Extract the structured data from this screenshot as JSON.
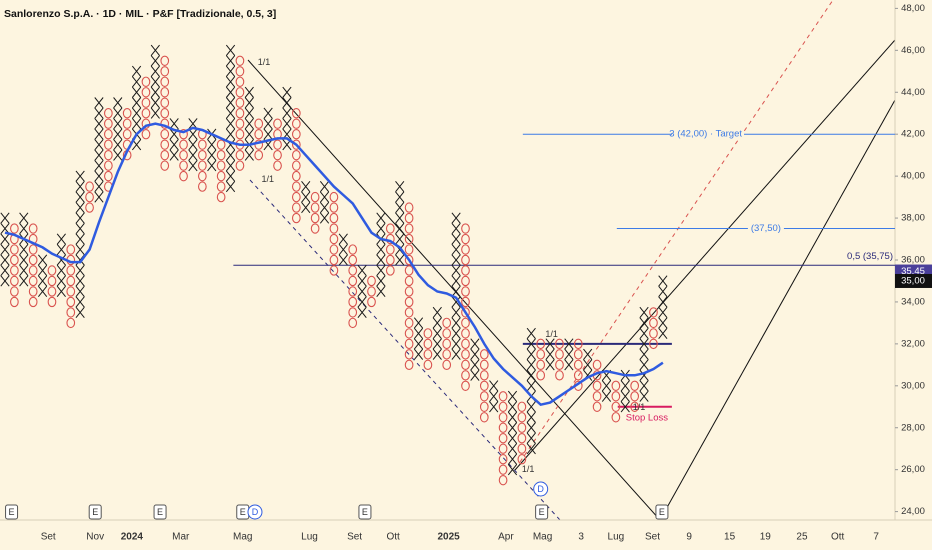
{
  "chart_data": {
    "type": "pnf",
    "title": "Sanlorenzo S.p.A. · 1D · MIL · P&F [Tradizionale, 0.5, 3]",
    "box_size": 0.5,
    "x_color": "#1a1a1a",
    "o_color": "#d9534f",
    "xlim": [
      -0.53,
      94.7
    ],
    "ylim": [
      23.6,
      48.4
    ],
    "yticks": [
      {
        "value": 24,
        "label": "24,00"
      },
      {
        "value": 26,
        "label": "26,00"
      },
      {
        "value": 28,
        "label": "28,00"
      },
      {
        "value": 30,
        "label": "30,00"
      },
      {
        "value": 32,
        "label": "32,00"
      },
      {
        "value": 34,
        "label": "34,00"
      },
      {
        "value": 36,
        "label": "36,00"
      },
      {
        "value": 38,
        "label": "38,00"
      },
      {
        "value": 40,
        "label": "40,00"
      },
      {
        "value": 42,
        "label": "42,00"
      },
      {
        "value": 44,
        "label": "44,00"
      },
      {
        "value": 46,
        "label": "46,00"
      },
      {
        "value": 48,
        "label": "48,00"
      }
    ],
    "xticks": [
      {
        "value": 4.6,
        "label": "Set"
      },
      {
        "value": 9.6,
        "label": "Nov"
      },
      {
        "value": 13.5,
        "label": "2024"
      },
      {
        "value": 18.7,
        "label": "Mar"
      },
      {
        "value": 25.3,
        "label": "Mag"
      },
      {
        "value": 32.4,
        "label": "Lug"
      },
      {
        "value": 37.2,
        "label": "Set"
      },
      {
        "value": 41.3,
        "label": "Ott"
      },
      {
        "value": 47.2,
        "label": "2025"
      },
      {
        "value": 53.3,
        "label": "Apr"
      },
      {
        "value": 57.2,
        "label": "Mag"
      },
      {
        "value": 61.3,
        "label": "3"
      },
      {
        "value": 65,
        "label": "Lug"
      },
      {
        "value": 68.9,
        "label": "Set"
      },
      {
        "value": 72.8,
        "label": "9"
      },
      {
        "value": 77.1,
        "label": "15"
      },
      {
        "value": 80.9,
        "label": "19"
      },
      {
        "value": 84.8,
        "label": "25"
      },
      {
        "value": 88.6,
        "label": "Ott"
      },
      {
        "value": 92.7,
        "label": "7"
      }
    ],
    "columns": [
      {
        "type": "X",
        "low": 35.0,
        "high": 38.0
      },
      {
        "type": "O",
        "low": 34.0,
        "high": 37.5
      },
      {
        "type": "X",
        "low": 35.0,
        "high": 38.0
      },
      {
        "type": "O",
        "low": 34.0,
        "high": 37.5
      },
      {
        "type": "X",
        "low": 34.5,
        "high": 36.0
      },
      {
        "type": "O",
        "low": 34.0,
        "high": 35.5
      },
      {
        "type": "X",
        "low": 34.5,
        "high": 37.0
      },
      {
        "type": "O",
        "low": 33.0,
        "high": 36.5
      },
      {
        "type": "X",
        "low": 33.5,
        "high": 40.0
      },
      {
        "type": "O",
        "low": 38.5,
        "high": 39.5
      },
      {
        "type": "X",
        "low": 39.0,
        "high": 43.5
      },
      {
        "type": "O",
        "low": 39.5,
        "high": 43.0
      },
      {
        "type": "X",
        "low": 41.0,
        "high": 43.5
      },
      {
        "type": "O",
        "low": 41.0,
        "high": 43.0
      },
      {
        "type": "X",
        "low": 41.5,
        "high": 45.0
      },
      {
        "type": "O",
        "low": 42.0,
        "high": 44.5
      },
      {
        "type": "X",
        "low": 43.0,
        "high": 46.0
      },
      {
        "type": "O",
        "low": 40.5,
        "high": 45.5
      },
      {
        "type": "X",
        "low": 41.0,
        "high": 42.5
      },
      {
        "type": "O",
        "low": 40.0,
        "high": 42.0
      },
      {
        "type": "X",
        "low": 40.5,
        "high": 42.5
      },
      {
        "type": "O",
        "low": 39.5,
        "high": 42.0
      },
      {
        "type": "X",
        "low": 40.5,
        "high": 42.0
      },
      {
        "type": "O",
        "low": 39.0,
        "high": 41.5
      },
      {
        "type": "X",
        "low": 39.5,
        "high": 46.0
      },
      {
        "type": "O",
        "low": 40.5,
        "high": 45.5
      },
      {
        "type": "X",
        "low": 41.0,
        "high": 44.0
      },
      {
        "type": "O",
        "low": 41.0,
        "high": 42.5
      },
      {
        "type": "X",
        "low": 41.5,
        "high": 43.0
      },
      {
        "type": "O",
        "low": 40.5,
        "high": 42.5
      },
      {
        "type": "X",
        "low": 41.5,
        "high": 44.0
      },
      {
        "type": "O",
        "low": 38.0,
        "high": 43.0
      },
      {
        "type": "X",
        "low": 38.5,
        "high": 39.5
      },
      {
        "type": "O",
        "low": 37.5,
        "high": 39.0
      },
      {
        "type": "X",
        "low": 38.0,
        "high": 39.5
      },
      {
        "type": "O",
        "low": 35.5,
        "high": 39.0
      },
      {
        "type": "X",
        "low": 36.0,
        "high": 37.0
      },
      {
        "type": "O",
        "low": 33.0,
        "high": 36.5
      },
      {
        "type": "X",
        "low": 33.5,
        "high": 35.5
      },
      {
        "type": "O",
        "low": 34.0,
        "high": 35.0
      },
      {
        "type": "X",
        "low": 34.5,
        "high": 38.0
      },
      {
        "type": "O",
        "low": 35.5,
        "high": 37.5
      },
      {
        "type": "X",
        "low": 36.0,
        "high": 39.5
      },
      {
        "type": "O",
        "low": 31.0,
        "high": 38.5
      },
      {
        "type": "X",
        "low": 31.5,
        "high": 33.0
      },
      {
        "type": "O",
        "low": 31.0,
        "high": 32.5
      },
      {
        "type": "X",
        "low": 31.5,
        "high": 33.5
      },
      {
        "type": "O",
        "low": 31.0,
        "high": 33.0
      },
      {
        "type": "X",
        "low": 31.5,
        "high": 38.0
      },
      {
        "type": "O",
        "low": 30.0,
        "high": 37.5
      },
      {
        "type": "X",
        "low": 30.5,
        "high": 32.0
      },
      {
        "type": "O",
        "low": 28.5,
        "high": 31.5
      },
      {
        "type": "X",
        "low": 29.0,
        "high": 30.0
      },
      {
        "type": "O",
        "low": 25.5,
        "high": 29.5
      },
      {
        "type": "X",
        "low": 26.0,
        "high": 29.5
      },
      {
        "type": "O",
        "low": 26.5,
        "high": 29.0
      },
      {
        "type": "X",
        "low": 27.0,
        "high": 32.5
      },
      {
        "type": "O",
        "low": 30.5,
        "high": 32.0
      },
      {
        "type": "X",
        "low": 31.0,
        "high": 32.0
      },
      {
        "type": "O",
        "low": 30.5,
        "high": 32.0
      },
      {
        "type": "X",
        "low": 31.0,
        "high": 32.0
      },
      {
        "type": "O",
        "low": 30.0,
        "high": 32.0
      },
      {
        "type": "X",
        "low": 30.5,
        "high": 31.5
      },
      {
        "type": "O",
        "low": 29.0,
        "high": 31.0
      },
      {
        "type": "X",
        "low": 29.5,
        "high": 30.5
      },
      {
        "type": "O",
        "low": 28.5,
        "high": 30.0
      },
      {
        "type": "X",
        "low": 29.0,
        "high": 30.5
      },
      {
        "type": "O",
        "low": 29.0,
        "high": 30.0
      },
      {
        "type": "X",
        "low": 29.5,
        "high": 33.5
      },
      {
        "type": "O",
        "low": 32.0,
        "high": 33.5
      },
      {
        "type": "X",
        "low": 32.5,
        "high": 35.0
      }
    ],
    "ma": {
      "color": "#2f5be0",
      "values": [
        37.3,
        37.2,
        37.0,
        36.8,
        36.6,
        36.3,
        36.1,
        35.9,
        35.9,
        36.5,
        37.8,
        39.0,
        40.2,
        41.2,
        42.0,
        42.4,
        42.5,
        42.4,
        42.2,
        42.1,
        42.3,
        42.2,
        42.0,
        41.8,
        41.6,
        41.5,
        41.5,
        41.6,
        41.7,
        41.8,
        41.8,
        41.5,
        41.0,
        40.5,
        40.0,
        39.5,
        39.1,
        38.7,
        38.0,
        37.3,
        37.0,
        36.9,
        36.6,
        36.0,
        35.3,
        34.8,
        34.5,
        34.4,
        34.2,
        33.5,
        32.8,
        32.0,
        31.3,
        30.8,
        30.4,
        30.0,
        29.5,
        29.1,
        29.2,
        29.5,
        29.8,
        30.1,
        30.4,
        30.6,
        30.7,
        30.6,
        30.5,
        30.5,
        30.6,
        30.8,
        31.1
      ]
    },
    "levels": [
      {
        "label": "3 (42,00) · Target",
        "value": 42,
        "from": 55.1,
        "color": "#3d7be6"
      },
      {
        "label": "(37,50)",
        "value": 37.5,
        "from": 65.1,
        "color": "#3d7be6"
      },
      {
        "label": "0,5 (35,75)",
        "value": 35.75,
        "from": 24.3,
        "color": "#2b2a7a"
      },
      {
        "value": 32,
        "from": 55.1,
        "to": 70.96,
        "color": "#2b2a7a"
      },
      {
        "label": "Stop Loss",
        "value": 29,
        "from": 65.2,
        "to": 70.96,
        "color": "#d81b60"
      }
    ],
    "price_labels": [
      {
        "value": 35.45,
        "label": "35,45",
        "color": "#4a3f9a"
      },
      {
        "value": 35,
        "label": "35,00",
        "color": "#111111"
      }
    ],
    "annotations": [
      {
        "text": "1/1",
        "x": 26.9,
        "y": 45.42
      },
      {
        "text": "1/1",
        "x": 27.3,
        "y": 39.84
      },
      {
        "text": "1/1",
        "x": 57.5,
        "y": 32.45
      },
      {
        "text": "1/1",
        "x": 55.0,
        "y": 26.0
      },
      {
        "text": "1/1",
        "x": 66.8,
        "y": 28.96
      }
    ],
    "events": [
      {
        "label": "E",
        "x": 0.7
      },
      {
        "label": "E",
        "x": 9.6
      },
      {
        "label": "E",
        "x": 16.5
      },
      {
        "label": "E",
        "x": 25.3
      },
      {
        "label": "D",
        "x": 26.6
      },
      {
        "label": "E",
        "x": 38.3
      },
      {
        "label": "E",
        "x": 57.1
      },
      {
        "label": "D",
        "x": 57.0
      },
      {
        "label": "E",
        "x": 69.9
      }
    ]
  }
}
